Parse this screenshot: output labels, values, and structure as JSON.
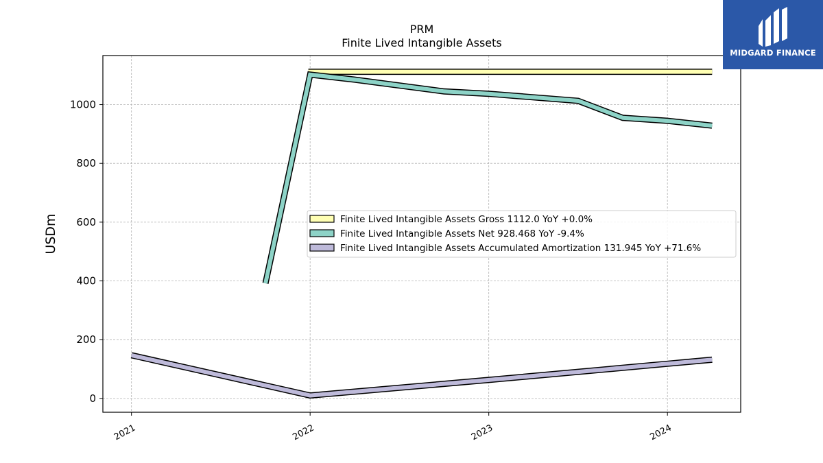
{
  "chart_data": {
    "type": "line",
    "title": "PRM",
    "subtitle": "Finite Lived Intangible Assets",
    "xlabel": "",
    "ylabel": "USDm",
    "xlim": [
      2020.84,
      2024.41
    ],
    "ylim": [
      -47,
      1167
    ],
    "yticks": [
      0,
      200,
      400,
      600,
      800,
      1000
    ],
    "xticks": [
      "2021",
      "2022",
      "2023",
      "2024"
    ],
    "grid": true,
    "legend_position": "center-right",
    "series": [
      {
        "name": "Finite Lived Intangible Assets Gross  1112.0 YoY +0.0%",
        "color": "#ffffb3",
        "x": [
          2021.99,
          2024.25
        ],
        "y": [
          1112.0,
          1112.0
        ]
      },
      {
        "name": "Finite Lived Intangible Assets Net  928.468 YoY -9.4%",
        "color": "#8dd3c7",
        "x": [
          2021.75,
          2022.0,
          2022.25,
          2022.75,
          2023.0,
          2023.5,
          2023.75,
          2024.0,
          2024.25
        ],
        "y": [
          392,
          1102,
          1085,
          1045,
          1037,
          1013,
          955,
          945,
          928.468
        ]
      },
      {
        "name": "Finite Lived Intangible Assets Accumulated Amortization  131.945 YoY +71.6%",
        "color": "#bebada",
        "x": [
          2021.0,
          2022.0,
          2023.0,
          2024.0,
          2024.25
        ],
        "y": [
          147,
          10,
          63,
          118,
          131.945
        ]
      }
    ]
  },
  "logo": {
    "text": "MIDGARD FINANCE",
    "color": "#2b58a8"
  }
}
